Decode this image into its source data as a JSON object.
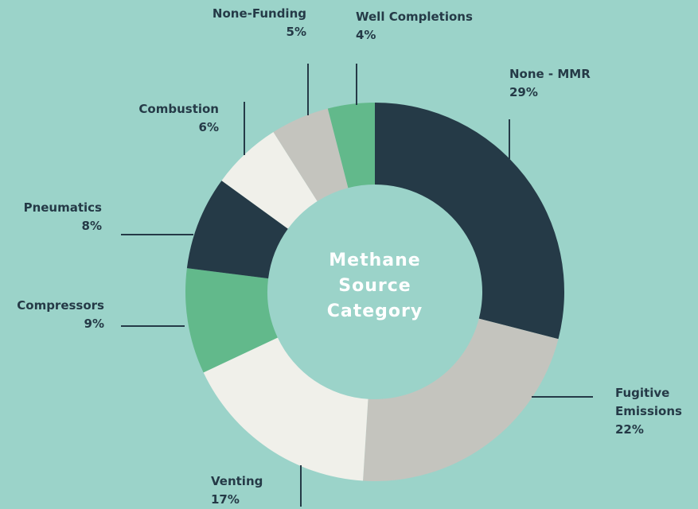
{
  "chart_data": {
    "type": "donut",
    "center_label": "Methane Source Category",
    "categories": [
      "None - MMR",
      "Fugitive Emissions",
      "Venting",
      "Compressors",
      "Pneumatics",
      "Combustion",
      "None-Funding",
      "Well Completions"
    ],
    "values": [
      29,
      22,
      17,
      9,
      8,
      6,
      5,
      4
    ],
    "value_labels": [
      "29%",
      "22%",
      "17%",
      "9%",
      "8%",
      "6%",
      "5%",
      "4%"
    ],
    "colors": [
      "#253a47",
      "#c4c4be",
      "#f0f0ea",
      "#62b98b",
      "#253a47",
      "#f0f0ea",
      "#c4c4be",
      "#62b98b"
    ]
  }
}
